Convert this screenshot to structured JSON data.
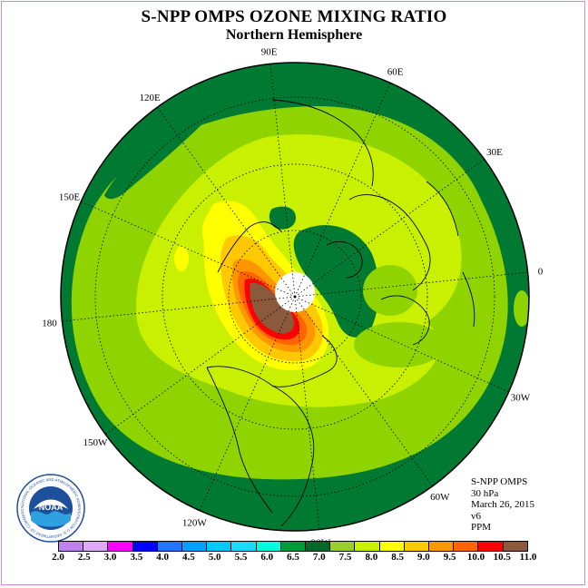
{
  "title": "S-NPP OMPS OZONE MIXING RATIO",
  "subtitle": "Northern Hemisphere",
  "longitude_labels": [
    "90E",
    "60E",
    "30E",
    "0",
    "30W",
    "60W",
    "90W",
    "120W",
    "150W",
    "180",
    "150E",
    "120E"
  ],
  "info": {
    "instrument": "S-NPP OMPS",
    "level": "30 hPa",
    "date": "March 26, 2015",
    "version": "v6",
    "units": "PPM"
  },
  "logo": {
    "name": "noaa-logo",
    "text": "NOAA",
    "ring_text": "NATIONAL OCEANIC AND ATMOSPHERIC ADMINISTRATION U.S. DEPARTMENT OF COMMERCE"
  },
  "colorbar": {
    "labels": [
      "2.0",
      "2.5",
      "3.0",
      "3.5",
      "4.0",
      "4.5",
      "5.0",
      "5.5",
      "6.0",
      "6.5",
      "7.0",
      "7.5",
      "8.0",
      "8.5",
      "9.0",
      "9.5",
      "10.0",
      "10.5",
      "11.0"
    ],
    "colors": [
      "#c080f0",
      "#e0a8f8",
      "#ff00ff",
      "#0000ff",
      "#1e78ff",
      "#00a0ff",
      "#00c8ff",
      "#20d8ff",
      "#00ffdc",
      "#009a3a",
      "#006a2a",
      "#9acd32",
      "#c8f000",
      "#ffff00",
      "#ffc800",
      "#ff9600",
      "#ff6400",
      "#ff0000",
      "#8b5a3c"
    ]
  },
  "map_colors": {
    "outer_band": "#007a32",
    "mid_ring": "#8fd400",
    "lime": "#c8f000",
    "yellow": "#ffff00",
    "gold": "#ffc800",
    "orange": "#ff9600",
    "red": "#ff0000",
    "core": "#8b5a3c",
    "polar_hole": "#ffffff"
  }
}
